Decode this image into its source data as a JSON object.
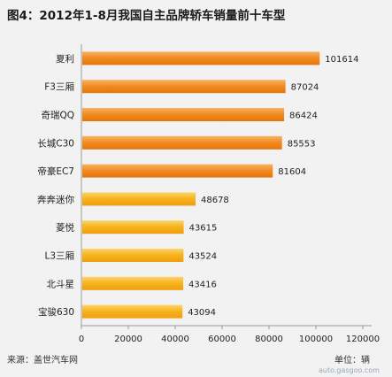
{
  "chart_data": {
    "type": "bar",
    "orientation": "horizontal",
    "title": "图4：2012年1-8月我国自主品牌轿车销量前十车型",
    "categories": [
      "夏利",
      "F3三厢",
      "奇瑞QQ",
      "长城C30",
      "帝豪EC7",
      "奔奔迷你",
      "菱悦",
      "L3三厢",
      "北斗星",
      "宝骏630"
    ],
    "values": [
      101614,
      87024,
      86424,
      85553,
      81604,
      48678,
      43615,
      43524,
      43416,
      43094
    ],
    "xlim": [
      0,
      120000
    ],
    "xticks": [
      0,
      20000,
      40000,
      60000,
      80000,
      100000,
      120000
    ],
    "source": "来源：盖世汽车网",
    "unit": "单位：辆",
    "grid": false,
    "colors": {
      "top_bars": "#f08a1e",
      "bottom_bars": "#f7b21a",
      "title": "#1a1a1a",
      "background": "#f2f2f2"
    }
  },
  "watermark": "auto.gasgoo.com"
}
